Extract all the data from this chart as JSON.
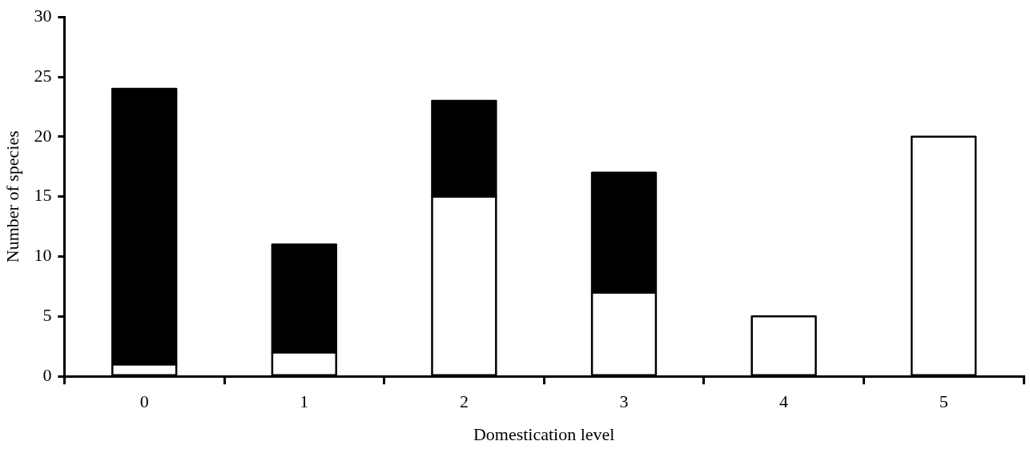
{
  "chart_data": {
    "type": "bar",
    "stacked": true,
    "xlabel": "Domestication level",
    "ylabel": "Number of species",
    "categories": [
      "0",
      "1",
      "2",
      "3",
      "4",
      "5"
    ],
    "series": [
      {
        "color": "#ffffff",
        "values": [
          1,
          2,
          15,
          7,
          5,
          20
        ]
      },
      {
        "color": "#000000",
        "values": [
          23,
          9,
          8,
          10,
          0,
          0
        ]
      }
    ],
    "ylim": [
      0,
      30
    ],
    "yticks": [
      0,
      5,
      10,
      15,
      20,
      25,
      30
    ]
  }
}
